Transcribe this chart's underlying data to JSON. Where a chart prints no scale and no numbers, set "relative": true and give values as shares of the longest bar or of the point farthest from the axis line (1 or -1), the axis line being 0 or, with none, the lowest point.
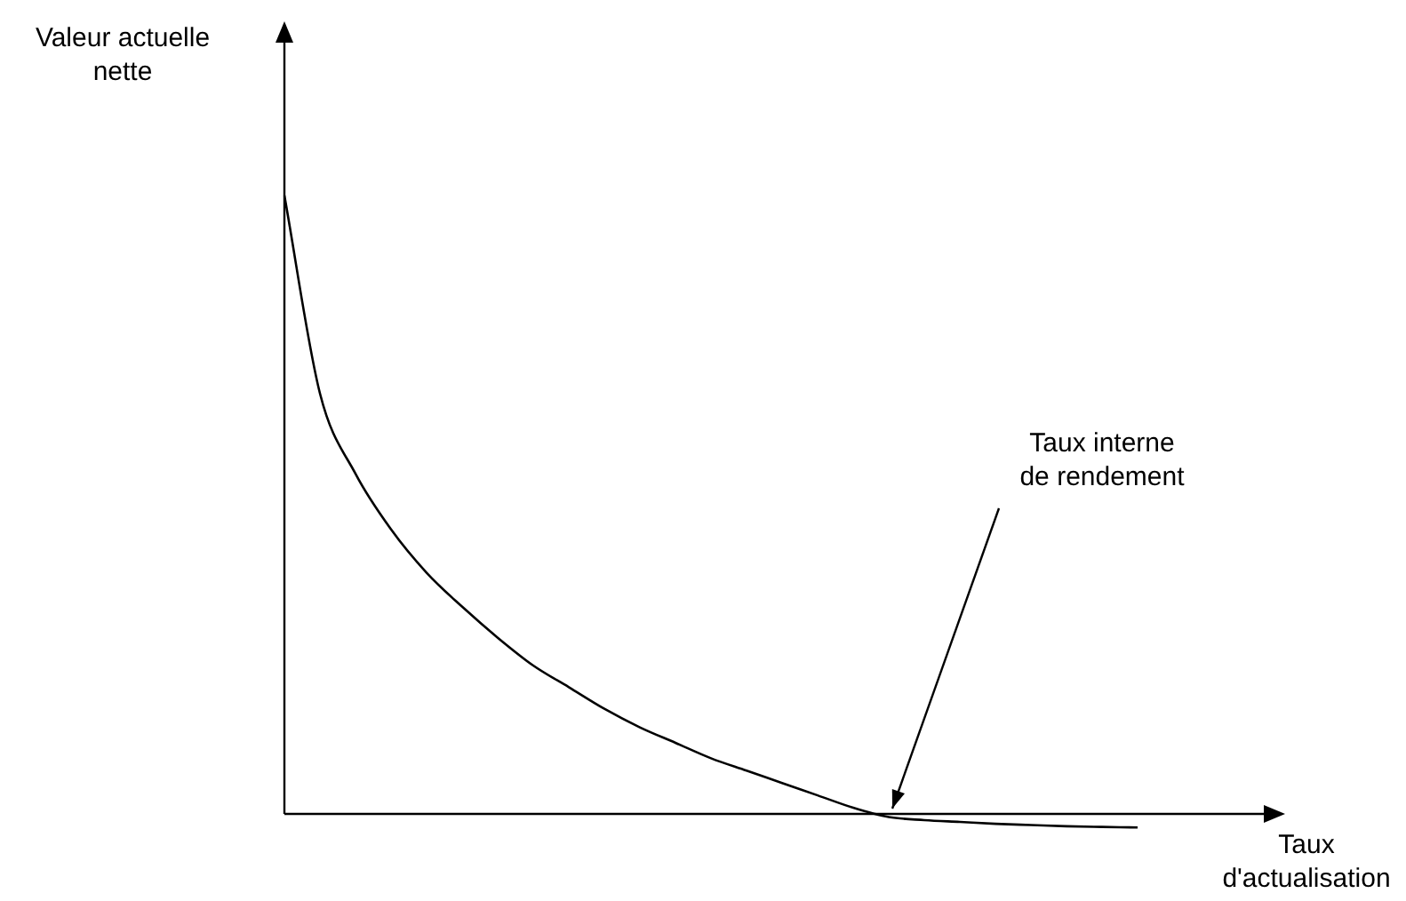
{
  "chart_data": {
    "type": "line",
    "relative": true,
    "xlabel": "Taux d'actualisation",
    "ylabel": "Valeur actuelle nette",
    "annotations": [
      "Taux interne\nde rendement"
    ],
    "marker": "none",
    "legend": false,
    "categories": [
      null,
      null,
      null,
      null,
      null,
      null,
      null,
      null,
      null,
      null,
      null,
      null,
      null,
      null,
      null,
      null,
      null,
      null,
      null,
      null,
      null,
      null,
      null,
      null,
      null,
      null,
      null,
      null,
      null
    ],
    "series": [
      {
        "color": "#000000",
        "values": [
          1,
          0.68,
          0.55,
          0.46,
          0.39,
          0.335,
          0.285,
          0.24,
          0.205,
          0.17,
          0.14,
          0.115,
          0.09,
          0.07,
          0.05,
          0.03,
          0.01,
          -0.005,
          -0.01,
          -0.013,
          -0.016,
          -0.018,
          -0.02,
          -0.021,
          -0.022,
          null,
          null,
          null,
          null
        ]
      }
    ]
  }
}
